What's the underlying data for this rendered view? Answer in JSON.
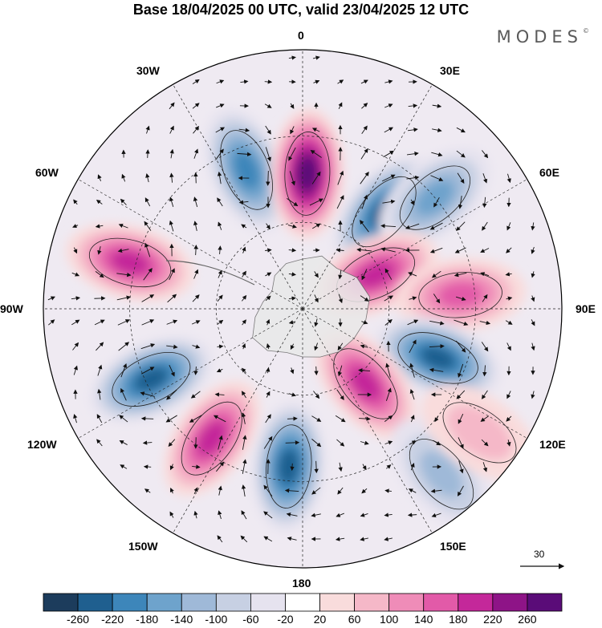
{
  "title": "Base 18/04/2025 00 UTC, valid 23/04/2025 12 UTC",
  "brand": "MODES",
  "brand_mark": "©",
  "map": {
    "projection": "south polar stereographic",
    "longitude_labels": {
      "top": "0",
      "top_right": "30E",
      "right_upper": "60E",
      "right": "90E",
      "right_lower": "120E",
      "bottom_right": "150E",
      "bottom": "180",
      "bottom_left": "150W",
      "left_lower": "120W",
      "left": "90W",
      "left_upper": "60W",
      "top_left": "30W"
    },
    "reference_vector_label": "30",
    "anomaly_centers": [
      {
        "id": "neg-30w",
        "sign": "negative",
        "lon_deg": -22,
        "colat_deg": 52,
        "strength": 0.75
      },
      {
        "id": "pos-0",
        "sign": "positive",
        "lon_deg": 2,
        "colat_deg": 47,
        "strength": 1.0
      },
      {
        "id": "neg-30e",
        "sign": "negative",
        "lon_deg": 40,
        "colat_deg": 44,
        "strength": 0.85
      },
      {
        "id": "neg-45e",
        "sign": "negative",
        "lon_deg": 50,
        "colat_deg": 60,
        "strength": 0.5
      },
      {
        "id": "pos-60e",
        "sign": "positive",
        "lon_deg": 65,
        "colat_deg": 28,
        "strength": 0.65
      },
      {
        "id": "pos-90e",
        "sign": "positive",
        "lon_deg": 85,
        "colat_deg": 55,
        "strength": 0.6
      },
      {
        "id": "neg-110e",
        "sign": "negative",
        "lon_deg": 110,
        "colat_deg": 50,
        "strength": 0.9
      },
      {
        "id": "pos-145e",
        "sign": "positive",
        "lon_deg": 140,
        "colat_deg": 34,
        "strength": 0.7
      },
      {
        "id": "neg-170w",
        "sign": "negative",
        "lon_deg": -175,
        "colat_deg": 55,
        "strength": 0.8
      },
      {
        "id": "pos-150w",
        "sign": "positive",
        "lon_deg": -145,
        "colat_deg": 55,
        "strength": 0.7
      },
      {
        "id": "neg-120w",
        "sign": "negative",
        "lon_deg": -115,
        "colat_deg": 58,
        "strength": 0.8
      },
      {
        "id": "pos-75w",
        "sign": "positive",
        "lon_deg": -75,
        "colat_deg": 62,
        "strength": 0.7
      },
      {
        "id": "neg-150e",
        "sign": "negative",
        "lon_deg": 140,
        "colat_deg": 75,
        "strength": 0.45
      },
      {
        "id": "pos-120e",
        "sign": "positive",
        "lon_deg": 125,
        "colat_deg": 75,
        "strength": 0.3
      }
    ]
  },
  "colorbar": {
    "tick_labels": [
      "-260",
      "-220",
      "-180",
      "-140",
      "-100",
      "-60",
      "-20",
      "20",
      "60",
      "100",
      "140",
      "180",
      "220",
      "260"
    ],
    "colors": [
      "#1c3c5c",
      "#1f5f8f",
      "#3d86ba",
      "#6ea3cc",
      "#9fb9d8",
      "#c7d0e3",
      "#e6e3ef",
      "#ffffff",
      "#f9dcdc",
      "#f5b8c8",
      "#ef8cb8",
      "#e25aa8",
      "#c4289a",
      "#8e1487",
      "#5a0c78"
    ]
  }
}
